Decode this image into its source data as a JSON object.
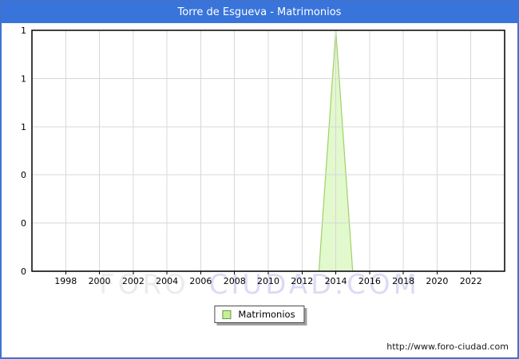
{
  "window": {
    "title": "Torre de Esgueva - Matrimonios"
  },
  "legend": {
    "label": "Matrimonios"
  },
  "watermark": {
    "left": "FORO",
    "right": "CIUDAD.COM"
  },
  "footer": {
    "url": "http://www.foro-ciudad.com"
  },
  "colors": {
    "titlebar_bg": "#3874da",
    "titlebar_text": "#ffffff",
    "frame_border": "#3f72d0",
    "plot_border": "#000000",
    "gridline": "#d8d8d8",
    "area_fill": "#e2f8cd",
    "area_stroke": "#9fd166",
    "legend_swatch_fill": "#c3f296",
    "legend_swatch_border": "#6f8f52",
    "watermark_left": "#ececec",
    "watermark_right": "#dcdbf5",
    "tick_text": "#000000"
  },
  "chart_data": {
    "type": "area",
    "title": "Torre de Esgueva - Matrimonios",
    "xlabel": "",
    "ylabel": "",
    "xlim": [
      1996,
      2024
    ],
    "ylim": [
      0,
      1
    ],
    "grid": true,
    "legend_position": "bottom-center",
    "x_ticks": [
      1998,
      2000,
      2002,
      2004,
      2006,
      2008,
      2010,
      2012,
      2014,
      2016,
      2018,
      2020,
      2022
    ],
    "y_ticks": [
      {
        "value": 1.0,
        "label": "1"
      },
      {
        "value": 0.8,
        "label": "1"
      },
      {
        "value": 0.6,
        "label": "1"
      },
      {
        "value": 0.4,
        "label": "0"
      },
      {
        "value": 0.2,
        "label": "0"
      },
      {
        "value": 0.0,
        "label": "0"
      }
    ],
    "series": [
      {
        "name": "Matrimonios",
        "x": [
          1996,
          1997,
          1998,
          1999,
          2000,
          2001,
          2002,
          2003,
          2004,
          2005,
          2006,
          2007,
          2008,
          2009,
          2010,
          2011,
          2012,
          2013,
          2014,
          2015,
          2016,
          2017,
          2018,
          2019,
          2020,
          2021,
          2022,
          2023
        ],
        "values": [
          0,
          0,
          0,
          0,
          0,
          0,
          0,
          0,
          0,
          0,
          0,
          0,
          0,
          0,
          0,
          0,
          0,
          0,
          1,
          0,
          0,
          0,
          0,
          0,
          0,
          0,
          0,
          0
        ]
      }
    ]
  }
}
